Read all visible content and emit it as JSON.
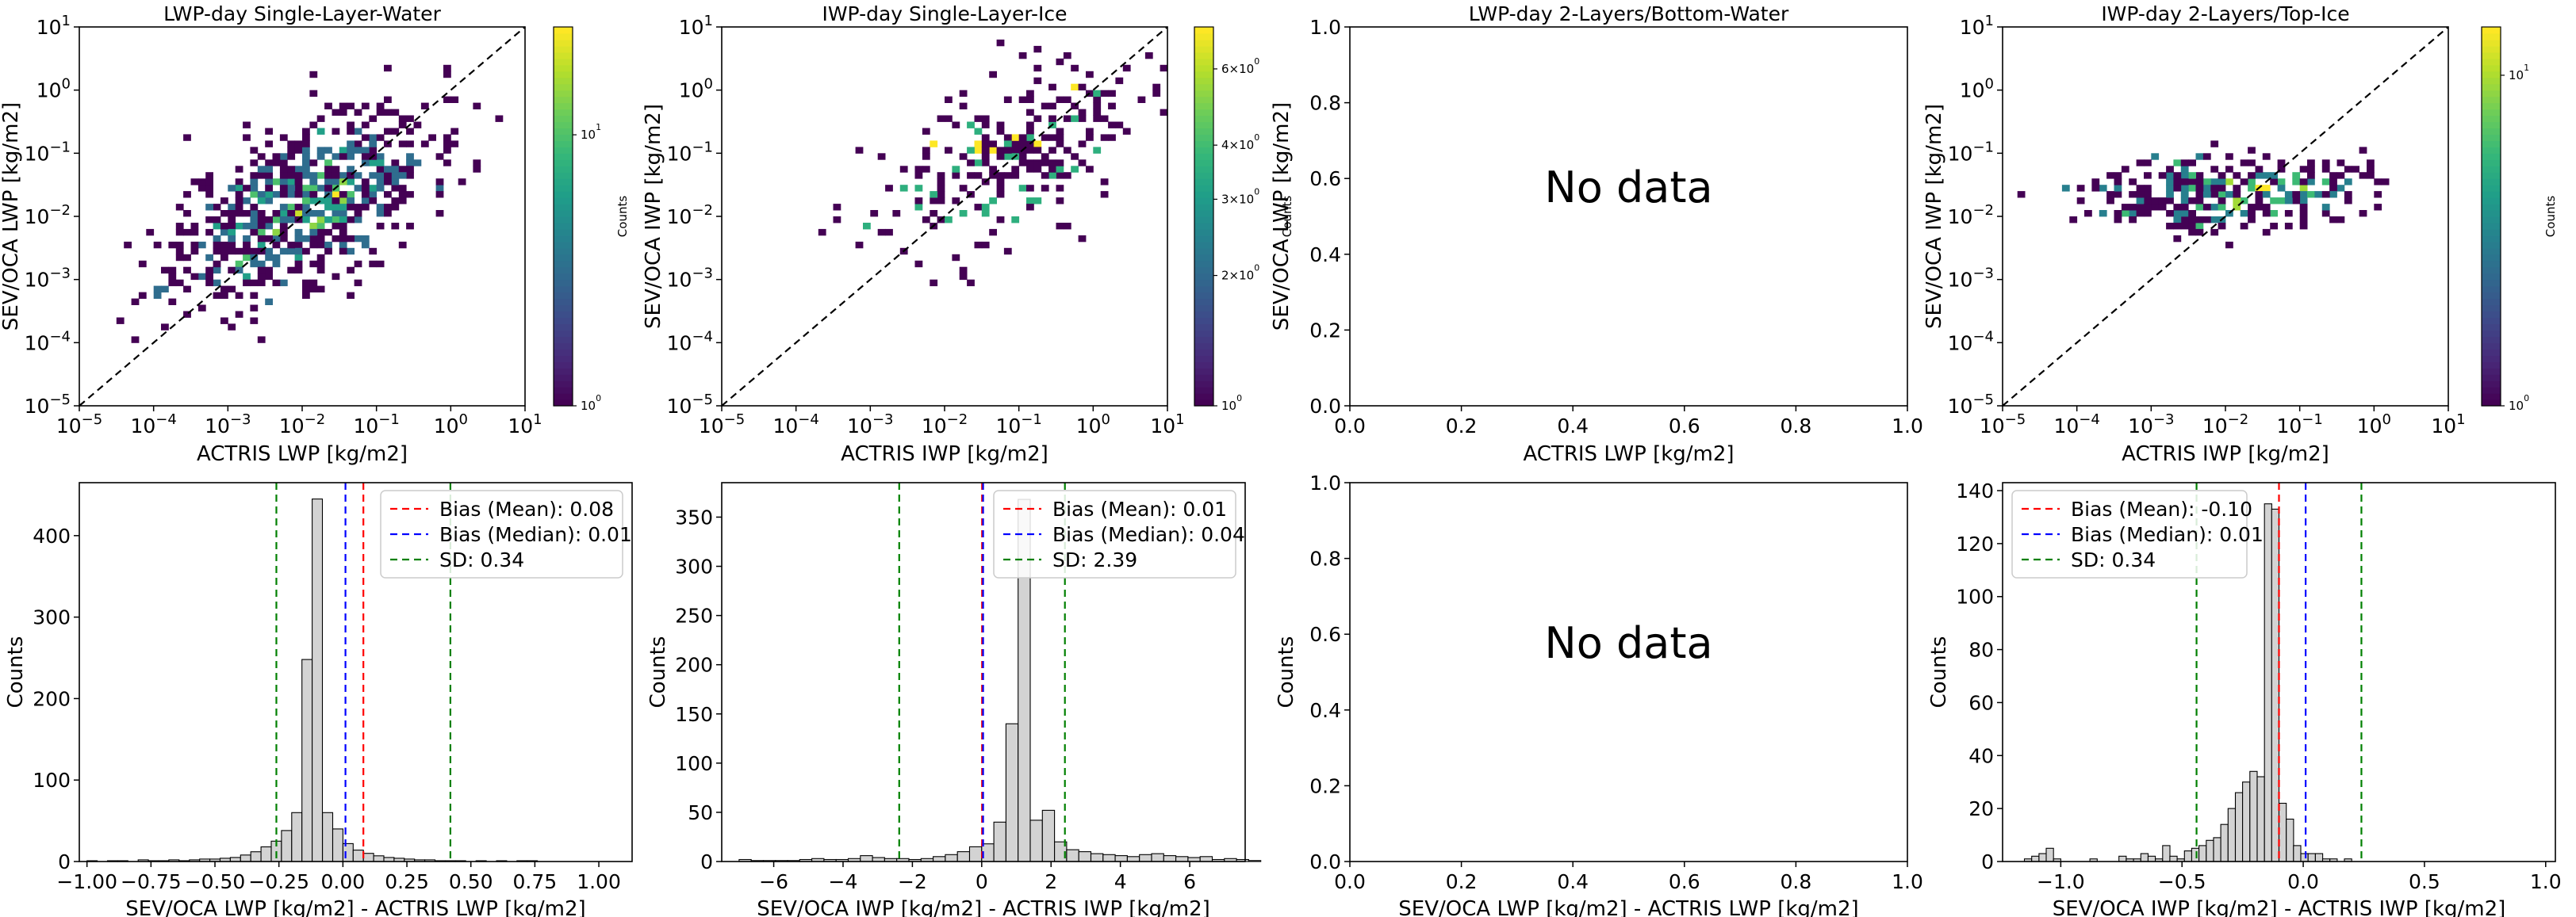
{
  "chart_data": [
    {
      "type": "heatmap",
      "title": "LWP-day Single-Layer-Water",
      "xlabel": "ACTRIS LWP [kg/m2]",
      "ylabel": "SEV/OCA LWP [kg/m2]",
      "xscale": "log",
      "yscale": "log",
      "xlim": [
        1e-05,
        10
      ],
      "ylim": [
        1e-05,
        10
      ],
      "xticks": [
        "10^-5",
        "10^-4",
        "10^-3",
        "10^-2",
        "10^-1",
        "10^0",
        "10^1"
      ],
      "yticks": [
        "10^-5",
        "10^-4",
        "10^-3",
        "10^-2",
        "10^-1",
        "10^0",
        "10^1"
      ],
      "one_to_one_line": true,
      "colorbar": {
        "label": "Counts",
        "scale": "log",
        "range": [
          1,
          25
        ],
        "ticks": [
          "10^0",
          "10^1"
        ],
        "colormap": "viridis"
      },
      "density": {
        "center": [
          -2.0,
          -1.8
        ],
        "spread": [
          0.85,
          0.75
        ],
        "corr": 0.55,
        "n": 700,
        "seed": 11
      }
    },
    {
      "type": "heatmap",
      "title": "IWP-day Single-Layer-Ice",
      "xlabel": "ACTRIS IWP [kg/m2]",
      "ylabel": "SEV/OCA IWP [kg/m2]",
      "xscale": "log",
      "yscale": "log",
      "xlim": [
        1e-05,
        10
      ],
      "ylim": [
        1e-05,
        10
      ],
      "xticks": [
        "10^-5",
        "10^-4",
        "10^-3",
        "10^-2",
        "10^-1",
        "10^0",
        "10^1"
      ],
      "yticks": [
        "10^-5",
        "10^-4",
        "10^-3",
        "10^-2",
        "10^-1",
        "10^0",
        "10^1"
      ],
      "one_to_one_line": true,
      "colorbar": {
        "label": "Counts",
        "scale": "log",
        "range": [
          1,
          7.5
        ],
        "ticks": [
          "10^0",
          "2×10^0",
          "3×10^0",
          "4×10^0",
          "6×10^0"
        ],
        "colormap": "viridis"
      },
      "density": {
        "center": [
          -1.2,
          -1.1
        ],
        "spread": [
          0.9,
          0.7
        ],
        "corr": 0.5,
        "n": 260,
        "seed": 23
      }
    },
    {
      "type": "heatmap",
      "title": "LWP-day 2-Layers/Bottom-Water",
      "xlabel": "ACTRIS LWP [kg/m2]",
      "ylabel": "SEV/OCA LWP [kg/m2]",
      "xlim": [
        0,
        1
      ],
      "ylim": [
        0,
        1
      ],
      "xticks": [
        "0.0",
        "0.2",
        "0.4",
        "0.6",
        "0.8",
        "1.0"
      ],
      "yticks": [
        "0.0",
        "0.2",
        "0.4",
        "0.6",
        "0.8",
        "1.0"
      ],
      "annotation": "No data"
    },
    {
      "type": "heatmap",
      "title": "IWP-day 2-Layers/Top-Ice",
      "xlabel": "ACTRIS IWP [kg/m2]",
      "ylabel": "SEV/OCA IWP [kg/m2]",
      "xscale": "log",
      "yscale": "log",
      "xlim": [
        1e-05,
        10
      ],
      "ylim": [
        1e-05,
        10
      ],
      "xticks": [
        "10^-5",
        "10^-4",
        "10^-3",
        "10^-2",
        "10^-1",
        "10^0",
        "10^1"
      ],
      "yticks": [
        "10^-5",
        "10^-4",
        "10^-3",
        "10^-2",
        "10^-1",
        "10^0",
        "10^1"
      ],
      "one_to_one_line": true,
      "colorbar": {
        "label": "Counts",
        "scale": "log",
        "range": [
          1,
          14
        ],
        "ticks": [
          "10^0",
          "10^1"
        ],
        "colormap": "viridis"
      },
      "density": {
        "center": [
          -2.0,
          -1.6
        ],
        "spread": [
          0.9,
          0.3
        ],
        "corr": 0.15,
        "n": 320,
        "seed": 37
      }
    },
    {
      "type": "bar",
      "xlabel": "SEV/OCA LWP [kg/m2] - ACTRIS LWP [kg/m2]",
      "ylabel": "Counts",
      "xlim": [
        -1.03,
        1.13
      ],
      "ylim": [
        0,
        465
      ],
      "xticks": [
        "−1.00",
        "−0.75",
        "−0.50",
        "−0.25",
        "0.00",
        "0.25",
        "0.50",
        "0.75",
        "1.00"
      ],
      "xtick_values": [
        -1.0,
        -0.75,
        -0.5,
        -0.25,
        0.0,
        0.25,
        0.5,
        0.75,
        1.0
      ],
      "yticks": [
        "0",
        "100",
        "200",
        "300",
        "400"
      ],
      "ytick_values": [
        0,
        100,
        200,
        300,
        400
      ],
      "bin_start": -1.0,
      "bin_width": 0.04,
      "values": [
        1,
        0,
        1,
        1,
        0,
        2,
        1,
        1,
        2,
        1,
        2,
        3,
        3,
        4,
        5,
        8,
        12,
        18,
        25,
        38,
        60,
        248,
        445,
        60,
        40,
        22,
        14,
        10,
        7,
        5,
        4,
        3,
        2,
        2,
        1,
        1,
        1,
        0,
        1,
        0,
        1,
        0,
        1,
        1
      ],
      "lines": [
        {
          "name": "Bias (Mean): 0.08",
          "x": 0.08,
          "color": "#ff0000"
        },
        {
          "name": "Bias (Median): 0.01",
          "x": 0.01,
          "color": "#0000ff"
        },
        {
          "name": "SD: 0.34",
          "x": -0.26,
          "color": "#008000"
        },
        {
          "name": "",
          "x": 0.42,
          "color": "#008000"
        }
      ]
    },
    {
      "type": "bar",
      "xlabel": "SEV/OCA IWP [kg/m2] - ACTRIS IWP [kg/m2]",
      "ylabel": "Counts",
      "xlim": [
        -7.5,
        7.6
      ],
      "ylim": [
        0,
        385
      ],
      "xticks": [
        "−6",
        "−4",
        "−2",
        "0",
        "2",
        "4",
        "6"
      ],
      "xtick_values": [
        -6,
        -4,
        -2,
        0,
        2,
        4,
        6
      ],
      "yticks": [
        "0",
        "50",
        "100",
        "150",
        "200",
        "250",
        "300",
        "350"
      ],
      "ytick_values": [
        0,
        50,
        100,
        150,
        200,
        250,
        300,
        350
      ],
      "bin_start": -7.0,
      "bin_width": 0.35,
      "values": [
        2,
        1,
        1,
        1,
        1,
        2,
        3,
        2,
        2,
        3,
        6,
        4,
        3,
        3,
        2,
        3,
        5,
        7,
        10,
        15,
        18,
        40,
        140,
        368,
        42,
        52,
        20,
        12,
        10,
        8,
        7,
        6,
        5,
        7,
        8,
        6,
        5,
        4,
        5,
        2,
        3,
        2,
        1
      ],
      "lines": [
        {
          "name": "Bias (Mean): 0.01",
          "x": 0.01,
          "color": "#ff0000"
        },
        {
          "name": "Bias (Median): 0.04",
          "x": 0.04,
          "color": "#0000ff"
        },
        {
          "name": "SD: 2.39",
          "x": -2.38,
          "color": "#008000"
        },
        {
          "name": "",
          "x": 2.4,
          "color": "#008000"
        }
      ]
    },
    {
      "type": "bar",
      "xlabel": "SEV/OCA LWP [kg/m2] - ACTRIS LWP [kg/m2]",
      "ylabel": "Counts",
      "xlim": [
        0,
        1
      ],
      "ylim": [
        0,
        1
      ],
      "xticks": [
        "0.0",
        "0.2",
        "0.4",
        "0.6",
        "0.8",
        "1.0"
      ],
      "yticks": [
        "0.0",
        "0.2",
        "0.4",
        "0.6",
        "0.8",
        "1.0"
      ],
      "annotation": "No data"
    },
    {
      "type": "bar",
      "xlabel": "SEV/OCA IWP [kg/m2] - ACTRIS IWP [kg/m2]",
      "ylabel": "Counts",
      "xlim": [
        -1.24,
        1.04
      ],
      "ylim": [
        0,
        143
      ],
      "xticks": [
        "−1.0",
        "−0.5",
        "0.0",
        "0.5",
        "1.0"
      ],
      "xtick_values": [
        -1.0,
        -0.5,
        0.0,
        0.5,
        1.0
      ],
      "yticks": [
        "0",
        "20",
        "40",
        "60",
        "80",
        "100",
        "120",
        "140"
      ],
      "ytick_values": [
        0,
        20,
        40,
        60,
        80,
        100,
        120,
        140
      ],
      "bin_start": -1.15,
      "bin_width": 0.03,
      "values": [
        1,
        2,
        3,
        5,
        1,
        0,
        0,
        0,
        0,
        1,
        0,
        0,
        0,
        2,
        1,
        1,
        3,
        2,
        1,
        6,
        2,
        1,
        4,
        5,
        6,
        8,
        9,
        14,
        20,
        26,
        30,
        34,
        32,
        135,
        133,
        22,
        16,
        6,
        3,
        3,
        3,
        1,
        1,
        0,
        1
      ],
      "lines": [
        {
          "name": "Bias (Mean): -0.10",
          "x": -0.1,
          "color": "#ff0000"
        },
        {
          "name": "Bias (Median): 0.01",
          "x": 0.01,
          "color": "#0000ff"
        },
        {
          "name": "SD: 0.34",
          "x": -0.44,
          "color": "#008000"
        },
        {
          "name": "",
          "x": 0.24,
          "color": "#008000"
        }
      ]
    }
  ]
}
